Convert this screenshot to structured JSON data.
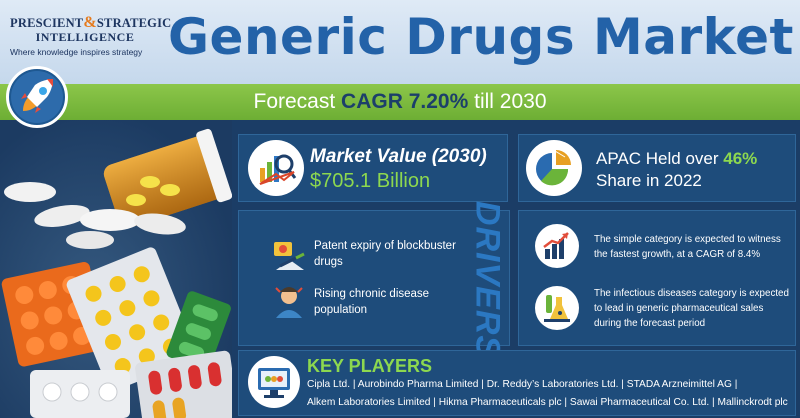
{
  "header": {
    "logo": {
      "line1_part1": "PRESCIENT",
      "line1_amp": "&",
      "line1_part2": "STRATEGIC",
      "line2": "INTELLIGENCE",
      "tagline": "Where knowledge inspires strategy"
    },
    "title": "Generic Drugs Market"
  },
  "forecast": {
    "prefix": "Forecast",
    "highlight": "CAGR 7.20%",
    "suffix": "till 2030"
  },
  "market_value": {
    "label": "Market Value (2030)",
    "value": "$705.1 Billion"
  },
  "apac": {
    "line1_prefix": "APAC Held over",
    "line1_highlight": "46%",
    "line2": "Share in 2022"
  },
  "drivers": {
    "heading": "DRIVERS",
    "items": [
      {
        "line1": "Patent expiry of blockbuster",
        "line2": "drugs"
      },
      {
        "line1": "Rising chronic disease",
        "line2": "population"
      }
    ]
  },
  "trends": [
    {
      "line1": "The simple category is expected to witness",
      "line2": "the fastest growth, at a CAGR of 8.4%"
    },
    {
      "line1": "The infectious diseases category is expected",
      "line2": "to lead in generic pharmaceutical sales",
      "line3": "during the forecast period"
    }
  ],
  "key_players": {
    "title": "KEY PLAYERS",
    "line1": "Cipla Ltd.  |  Aurobindo Pharma Limited  |  Dr. Reddy’s Laboratories Ltd.  |  STADA Arzneimittel AG  |",
    "line2": "Alkem Laboratories Limited  |  Hikma Pharmaceuticals plc  |  Sawai Pharmaceutical Co. Ltd.  |  Mallinckrodt plc"
  },
  "colors": {
    "title_blue": "#2362a8",
    "accent_green": "#8dd84f",
    "band_green": "#7bbb3f",
    "navy": "#1b3d66",
    "panel": "#1e4c7b",
    "logo_orange": "#e57b1e"
  },
  "icons": [
    "rocket-icon",
    "pills-photo",
    "market-value-icon",
    "pie-chart-icon",
    "patent-icon",
    "chronic-disease-icon",
    "growth-chart-icon",
    "lab-icon",
    "key-players-icon"
  ]
}
